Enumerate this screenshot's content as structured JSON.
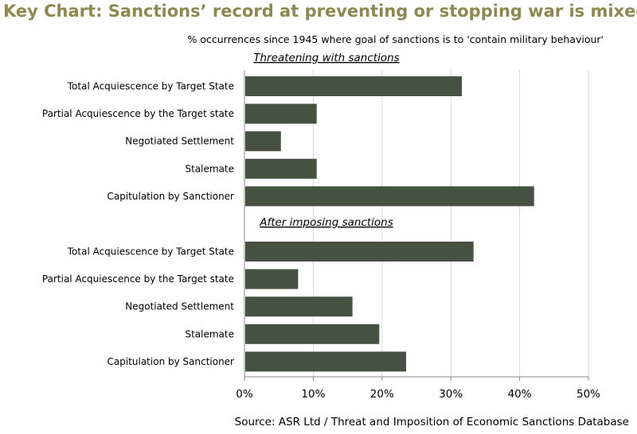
{
  "title": "Key Chart: Sanctions’ record at preventing or stopping war is mixed",
  "subtitle": "% occurrences since 1945 where goal of sanctions is to 'contain military behaviour'",
  "source": "Source: ASR Ltd / Threat and Imposition of Economic Sanctions Database",
  "colors": {
    "bar": "#465241",
    "title": "#8c8a50",
    "grid": "#d9d9d9"
  },
  "chart_data": {
    "type": "bar",
    "orientation": "horizontal",
    "xlim": [
      0,
      50
    ],
    "x_ticks": [
      "0%",
      "10%",
      "20%",
      "30%",
      "40%",
      "50%"
    ],
    "grid": true,
    "groups": [
      {
        "name": "Threatening with sanctions",
        "categories": [
          "Total Acquiescence by Target State",
          "Partial Acquiescence by the Target state",
          "Negotiated Settlement",
          "Stalemate",
          "Capitulation by Sanctioner"
        ],
        "values": [
          31.6,
          10.5,
          5.3,
          10.5,
          42.1
        ]
      },
      {
        "name": "After imposing sanctions",
        "categories": [
          "Total Acquiescence by Target State",
          "Partial Acquiescence by the Target state",
          "Negotiated Settlement",
          "Stalemate",
          "Capitulation by Sanctioner"
        ],
        "values": [
          33.3,
          7.8,
          15.7,
          19.6,
          23.5
        ]
      }
    ]
  }
}
